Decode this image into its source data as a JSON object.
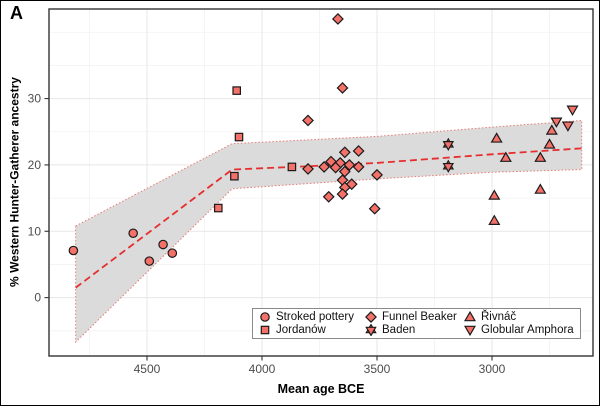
{
  "figure": {
    "panel_label": "A"
  },
  "colors": {
    "marker_fill": "#F4716A",
    "marker_stroke": "#1a1a1a",
    "trend_red": "#E62E2E",
    "ribbon_fill": "#DBDBDB",
    "ribbon_edge": "#E87C74",
    "grid_major": "#E7E7E7",
    "grid_minor": "#F2F2F2",
    "axis_text": "#4d4d4d",
    "panel_border": "#333333"
  },
  "chart_data": {
    "type": "scatter",
    "title": "",
    "xlabel": "Mean age BCE",
    "ylabel": "% Western Hunter-Gatherer ancestry",
    "x_axis": {
      "reversed": true,
      "domain": [
        4926,
        2561
      ],
      "ticks": [
        4500,
        4000,
        3500,
        3000
      ],
      "minor_ticks": [
        4750,
        4250,
        3750,
        3250,
        2750
      ]
    },
    "y_axis": {
      "domain": [
        43.5,
        -8.8
      ],
      "ticks": [
        0,
        10,
        20,
        30
      ],
      "minor_ticks": [
        -5,
        5,
        15,
        25,
        35,
        40
      ]
    },
    "series": [
      {
        "name": "Stroked pottery",
        "shape": "circle",
        "points": [
          [
            4820,
            7.1
          ],
          [
            4560,
            9.7
          ],
          [
            4490,
            5.5
          ],
          [
            4430,
            8.0
          ],
          [
            4390,
            6.7
          ]
        ]
      },
      {
        "name": "Jordanów",
        "shape": "square",
        "points": [
          [
            4110,
            31.2
          ],
          [
            4100,
            24.2
          ],
          [
            4120,
            18.3
          ],
          [
            4190,
            13.5
          ],
          [
            3870,
            19.7
          ]
        ]
      },
      {
        "name": "Funnel Beaker",
        "shape": "diamond",
        "points": [
          [
            3670,
            42.0
          ],
          [
            3650,
            31.6
          ],
          [
            3800,
            26.7
          ],
          [
            3800,
            19.4
          ],
          [
            3640,
            21.9
          ],
          [
            3580,
            22.1
          ],
          [
            3700,
            20.5
          ],
          [
            3660,
            20.3
          ],
          [
            3620,
            20.0
          ],
          [
            3730,
            19.7
          ],
          [
            3680,
            19.6
          ],
          [
            3580,
            19.7
          ],
          [
            3640,
            19.0
          ],
          [
            3500,
            18.5
          ],
          [
            3650,
            17.7
          ],
          [
            3610,
            17.1
          ],
          [
            3640,
            16.6
          ],
          [
            3650,
            15.6
          ],
          [
            3710,
            15.2
          ],
          [
            3510,
            13.4
          ]
        ]
      },
      {
        "name": "Baden",
        "shape": "star6",
        "points": [
          [
            3190,
            23.1
          ],
          [
            3190,
            19.8
          ]
        ]
      },
      {
        "name": "Řivnáč",
        "shape": "triangle-up",
        "points": [
          [
            2980,
            24.0
          ],
          [
            2940,
            21.1
          ],
          [
            2990,
            15.4
          ],
          [
            2990,
            11.6
          ],
          [
            2790,
            21.1
          ],
          [
            2790,
            16.3
          ],
          [
            2750,
            23.1
          ],
          [
            2740,
            25.2
          ]
        ]
      },
      {
        "name": "Globular Amphora",
        "shape": "triangle-down",
        "points": [
          [
            2650,
            28.3
          ],
          [
            2670,
            25.9
          ],
          [
            2720,
            26.5
          ]
        ]
      }
    ],
    "trend_line": {
      "style": "dashed",
      "points": [
        [
          4810,
          1.5
        ],
        [
          4130,
          19.3
        ],
        [
          3800,
          19.8
        ],
        [
          3500,
          20.3
        ],
        [
          3000,
          21.6
        ],
        [
          2610,
          22.5
        ]
      ]
    },
    "ribbon": {
      "top": [
        [
          4810,
          10.8
        ],
        [
          4130,
          23.2
        ],
        [
          3500,
          24.3
        ],
        [
          3000,
          25.7
        ],
        [
          2610,
          26.7
        ]
      ],
      "bottom": [
        [
          4810,
          -6.7
        ],
        [
          4130,
          16.4
        ],
        [
          3500,
          17.9
        ],
        [
          3000,
          18.9
        ],
        [
          2610,
          19.3
        ]
      ]
    }
  },
  "legend": {
    "items": [
      {
        "label": "Stroked pottery",
        "shape": "circle"
      },
      {
        "label": "Jordanów",
        "shape": "square"
      },
      {
        "label": "Funnel Beaker",
        "shape": "diamond"
      },
      {
        "label": "Baden",
        "shape": "star6"
      },
      {
        "label": "Řivnáč",
        "shape": "triangle-up"
      },
      {
        "label": "Globular Amphora",
        "shape": "triangle-down"
      }
    ]
  }
}
